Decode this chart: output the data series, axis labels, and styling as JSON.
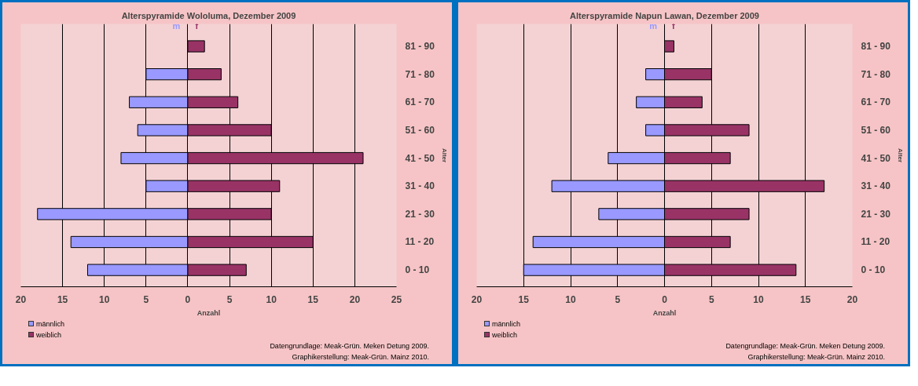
{
  "chart_data": [
    {
      "type": "bar",
      "orientation": "horizontal",
      "stacked": true,
      "title": "Alterspyramide Wololuma, Dezember 2009",
      "xlabel": "Anzahl",
      "ylabel": "Alter",
      "categories": [
        "81 - 90",
        "71 - 80",
        "61 - 70",
        "51 - 60",
        "41 - 50",
        "31 - 40",
        "21 - 30",
        "11 - 20",
        "0 - 10"
      ],
      "series": [
        {
          "name": "männlich",
          "color": "#9999ff",
          "values": [
            null,
            -5,
            -7,
            -6,
            -8,
            -5,
            -18,
            -14,
            -12
          ]
        },
        {
          "name": "weiblich",
          "color": "#993366",
          "values": [
            2,
            4,
            6,
            10,
            21,
            11,
            10,
            15,
            7
          ]
        }
      ],
      "xlim": [
        -20,
        25
      ],
      "xticks": [
        {
          "value": -20,
          "label": "20"
        },
        {
          "value": -15,
          "label": "15"
        },
        {
          "value": -10,
          "label": "10"
        },
        {
          "value": -5,
          "label": "5"
        },
        0,
        5,
        10,
        15,
        20,
        25
      ],
      "grid": "x",
      "legend": "bottom left",
      "annotations": [
        "m",
        "f",
        "Datengrundlage: Meak-Grün. Meken Detung 2009.",
        "Graphikerstellung: Meak-Grün. Mainz 2010."
      ]
    },
    {
      "type": "bar",
      "orientation": "horizontal",
      "stacked": true,
      "title": "Alterspyramide Napun Lawan, Dezember 2009",
      "xlabel": "Anzahl",
      "ylabel": "Alter",
      "categories": [
        "81 - 90",
        "71 - 80",
        "61 - 70",
        "51 - 60",
        "41 - 50",
        "31 - 40",
        "21 - 30",
        "11 - 20",
        "0 - 10"
      ],
      "series": [
        {
          "name": "männlich",
          "color": "#9999ff",
          "values": [
            null,
            -2,
            -3,
            -2,
            -6,
            -12,
            -7,
            -14,
            -15
          ]
        },
        {
          "name": "weiblich",
          "color": "#993366",
          "values": [
            1,
            5,
            4,
            9,
            7,
            17,
            9,
            7,
            14
          ]
        }
      ],
      "xlim": [
        -20,
        20
      ],
      "xticks": [
        {
          "value": -20,
          "label": "20"
        },
        {
          "value": -15,
          "label": "15"
        },
        {
          "value": -10,
          "label": "10"
        },
        {
          "value": -5,
          "label": "5"
        },
        0,
        5,
        10,
        15,
        20
      ],
      "grid": "x",
      "legend": "bottom left",
      "annotations": [
        "m",
        "f",
        "Datengrundlage: Meak-Grün. Meken Detung 2009.",
        "Graphikerstellung: Meak-Grün. Mainz 2010."
      ]
    }
  ]
}
